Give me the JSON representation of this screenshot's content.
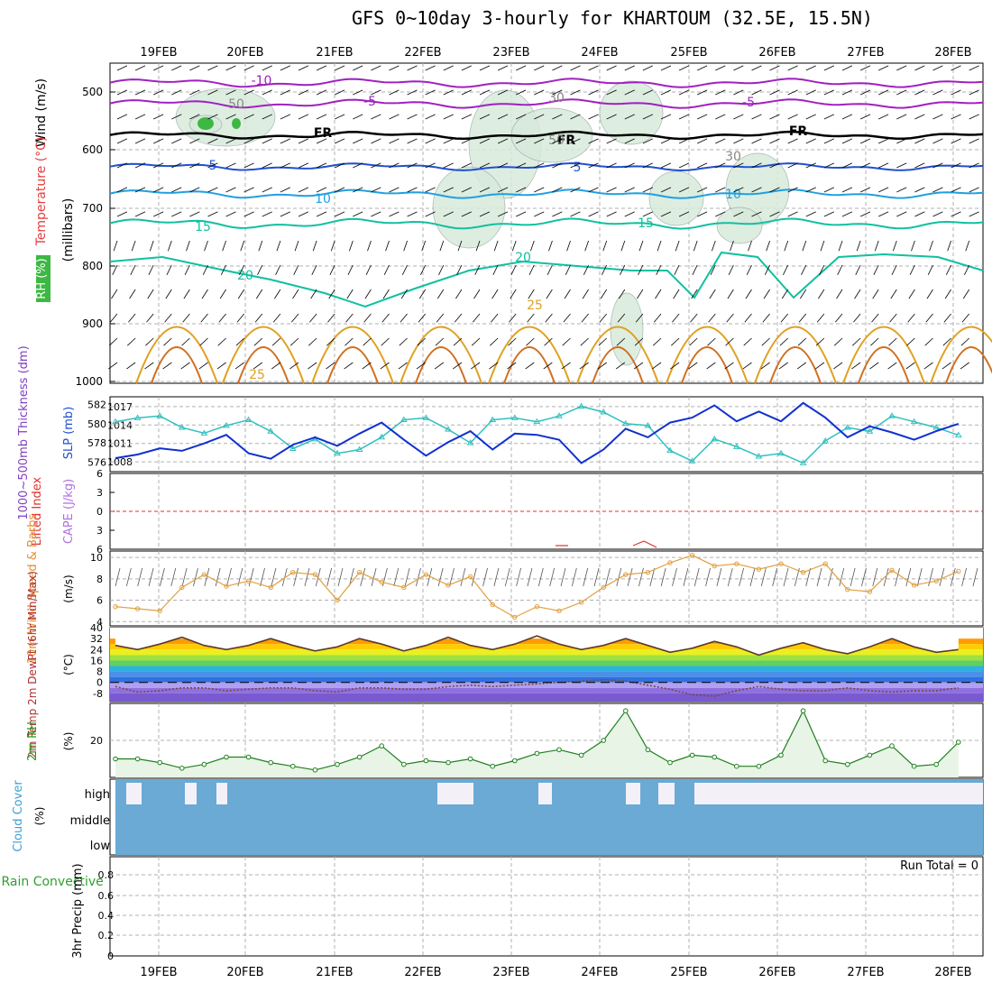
{
  "title": "GFS 0~10day 3-hourly for KHARTOUM (32.5E, 15.5N)",
  "dates": [
    "19FEB",
    "20FEB",
    "21FEB",
    "22FEB",
    "23FEB",
    "24FEB",
    "25FEB",
    "26FEB",
    "27FEB",
    "28FEB"
  ],
  "colors": {
    "grid": "#b0b0b0",
    "temp_purple": "#a020c0",
    "temp_blue": "#2050d0",
    "temp_cyan": "#20a0e0",
    "temp_teal": "#10c0a0",
    "temp_orange": "#e0a020",
    "slp": "#1030d0",
    "thickness": "#30c0c0",
    "wind10m": "#e0a040",
    "rh2m": "#208020",
    "cloud": "#6aaad4",
    "lifted": "#e03030",
    "cape": "#c080e0"
  },
  "panels": {
    "upper": {
      "ylabel_wind": "Wind (m/s)",
      "ylabel_temp": "Temperature (°C)",
      "ylabel_rh": "RH (%)",
      "ylabel_mb": "(millibars)",
      "levels": [
        "500",
        "600",
        "700",
        "800",
        "900",
        "1000"
      ],
      "contour_labels": [
        "-10",
        "-5",
        "-5",
        "FR",
        "FR",
        "FR",
        "5",
        "5",
        "10",
        "10",
        "15",
        "15",
        "20",
        "20",
        "25",
        "25",
        "50",
        "50",
        "30",
        "30"
      ]
    },
    "slp": {
      "ylabel_left": "1000~500mb Thickness (dm)",
      "ylabel_right": "SLP (mb)",
      "left_ticks": [
        "582",
        "580",
        "578",
        "576"
      ],
      "right_ticks": [
        "1017",
        "1014",
        "1011",
        "1008"
      ]
    },
    "li": {
      "ylabel_left": "Lifted Index",
      "ylabel_right": "CAPE (J/kg)",
      "ticks": [
        "6",
        "3",
        "0",
        "-3",
        "-6"
      ]
    },
    "wind": {
      "ylabel": "10m Wind Speed & Barbs",
      "unit": "(m/s)",
      "ticks": [
        "10",
        "8",
        "6",
        "4"
      ]
    },
    "temp": {
      "ylabel": "2m Temp 2m DewPt (6hr Min/Max)",
      "unit": "(°C)",
      "ticks": [
        "40",
        "32",
        "24",
        "16",
        "8",
        "0",
        "-8"
      ]
    },
    "rh": {
      "ylabel": "2m RH",
      "unit": "(%)",
      "ticks": [
        "20"
      ]
    },
    "cloud": {
      "ylabel": "Cloud Cover",
      "unit": "(%)",
      "ticks": [
        "high",
        "middle",
        "low"
      ]
    },
    "precip": {
      "ylabel_left": "Total / Rain Convective",
      "ylabel_right": "3hr Precip (mm)",
      "ticks": [
        "0.8",
        "0.6",
        "0.4",
        "0.2",
        "0"
      ],
      "run_total": "Run Total = 0"
    }
  },
  "chart_data": [
    {
      "type": "line",
      "title": "1000~500mb Thickness (dm) / SLP (mb)",
      "x": [
        "18FEB18",
        "19FEB00",
        "19FEB06",
        "19FEB12",
        "19FEB18",
        "20FEB00",
        "20FEB06",
        "20FEB12",
        "20FEB18",
        "21FEB00",
        "21FEB06",
        "21FEB12",
        "21FEB18",
        "22FEB00",
        "22FEB06",
        "22FEB12",
        "22FEB18",
        "23FEB00",
        "23FEB06",
        "23FEB12",
        "23FEB18",
        "24FEB00",
        "24FEB06",
        "24FEB12",
        "24FEB18",
        "25FEB00",
        "25FEB06",
        "25FEB12",
        "25FEB18",
        "26FEB00",
        "26FEB06",
        "26FEB12",
        "26FEB18",
        "27FEB00",
        "27FEB06",
        "27FEB12",
        "27FEB18",
        "28FEB00",
        "28FEB06"
      ],
      "series": [
        {
          "name": "SLP (mb)",
          "values": [
            1008.6,
            1009.2,
            1010.2,
            1009.8,
            1011.0,
            1012.4,
            1009.4,
            1008.5,
            1010.8,
            1012.0,
            1010.6,
            1012.6,
            1014.4,
            1011.6,
            1009.0,
            1011.2,
            1013.0,
            1010.0,
            1012.6,
            1012.4,
            1011.6,
            1007.8,
            1010.0,
            1013.4,
            1012.0,
            1014.4,
            1015.2,
            1017.2,
            1014.6,
            1016.2,
            1014.6,
            1017.6,
            1015.2,
            1012.0,
            1013.8,
            1012.8,
            1011.6,
            1013.0,
            1014.2
          ]
        },
        {
          "name": "1000~500mb Thickness (dm)",
          "values": [
            580.2,
            580.6,
            580.8,
            579.6,
            579.0,
            579.8,
            580.4,
            579.2,
            577.4,
            578.4,
            576.9,
            577.3,
            578.6,
            580.4,
            580.6,
            579.4,
            578.0,
            580.4,
            580.6,
            580.2,
            580.8,
            581.8,
            581.2,
            580.0,
            579.8,
            577.2,
            576.1,
            578.4,
            577.6,
            576.6,
            576.9,
            575.9,
            578.2,
            579.6,
            579.2,
            580.8,
            580.2,
            579.6,
            578.8
          ]
        }
      ],
      "ylim_left": [
        575,
        582.8
      ],
      "ylim_right": [
        1006.4,
        1018.6
      ]
    },
    {
      "type": "line",
      "title": "10m Wind Speed (m/s)",
      "x": [
        "18FEB18",
        "19FEB00",
        "19FEB06",
        "19FEB12",
        "19FEB18",
        "20FEB00",
        "20FEB06",
        "20FEB12",
        "20FEB18",
        "21FEB00",
        "21FEB06",
        "21FEB12",
        "21FEB18",
        "22FEB00",
        "22FEB06",
        "22FEB12",
        "22FEB18",
        "23FEB00",
        "23FEB06",
        "23FEB12",
        "23FEB18",
        "24FEB00",
        "24FEB06",
        "24FEB12",
        "24FEB18",
        "25FEB00",
        "25FEB06",
        "25FEB12",
        "25FEB18",
        "26FEB00",
        "26FEB06",
        "26FEB12",
        "26FEB18",
        "27FEB00",
        "27FEB06",
        "27FEB12",
        "27FEB18",
        "28FEB00",
        "28FEB06"
      ],
      "series": [
        {
          "name": "10m Wind Speed",
          "values": [
            5.4,
            5.2,
            5.0,
            7.2,
            8.4,
            7.3,
            7.8,
            7.2,
            8.6,
            8.4,
            6.0,
            8.6,
            7.7,
            7.2,
            8.4,
            7.4,
            8.2,
            5.6,
            4.4,
            5.4,
            5.0,
            5.8,
            7.2,
            8.4,
            8.6,
            9.5,
            10.2,
            9.2,
            9.4,
            8.9,
            9.4,
            8.6,
            9.4,
            7.0,
            6.8,
            8.8,
            7.4,
            7.8,
            8.7
          ]
        }
      ],
      "ylim": [
        3.6,
        10.6
      ]
    },
    {
      "type": "area",
      "title": "2m Temp / 2m DewPt (°C)",
      "x": [
        "18FEB18",
        "19FEB00",
        "19FEB06",
        "19FEB12",
        "19FEB18",
        "20FEB00",
        "20FEB06",
        "20FEB12",
        "20FEB18",
        "21FEB00",
        "21FEB06",
        "21FEB12",
        "21FEB18",
        "22FEB00",
        "22FEB06",
        "22FEB12",
        "22FEB18",
        "23FEB00",
        "23FEB06",
        "23FEB12",
        "23FEB18",
        "24FEB00",
        "24FEB06",
        "24FEB12",
        "24FEB18",
        "25FEB00",
        "25FEB06",
        "25FEB12",
        "25FEB18",
        "26FEB00",
        "26FEB06",
        "26FEB12",
        "26FEB18",
        "27FEB00",
        "27FEB06",
        "27FEB12",
        "27FEB18",
        "28FEB00",
        "28FEB06"
      ],
      "series": [
        {
          "name": "2m Temp",
          "values": [
            27,
            24,
            28,
            33,
            27,
            24,
            27,
            32,
            27,
            23,
            26,
            32,
            28,
            23,
            27,
            33,
            27,
            24,
            28,
            34,
            28,
            24,
            27,
            32,
            27,
            22,
            25,
            30,
            26,
            20,
            25,
            29,
            24,
            21,
            26,
            32,
            26,
            22,
            24
          ]
        },
        {
          "name": "2m DewPt",
          "values": [
            -3,
            -7,
            -6,
            -4,
            -4,
            -6,
            -5,
            -4,
            -4,
            -6,
            -7,
            -4,
            -4,
            -5,
            -5,
            -3,
            -2,
            -3,
            -2,
            -1,
            0,
            1,
            2,
            1,
            -2,
            -5,
            -9,
            -10,
            -6,
            -3,
            -5,
            -6,
            -6,
            -4,
            -6,
            -7,
            -6,
            -6,
            -4
          ]
        }
      ],
      "ylim": [
        -14,
        40
      ]
    },
    {
      "type": "area",
      "title": "2m RH (%)",
      "x": [
        "18FEB18",
        "19FEB00",
        "19FEB06",
        "19FEB12",
        "19FEB18",
        "20FEB00",
        "20FEB06",
        "20FEB12",
        "20FEB18",
        "21FEB00",
        "21FEB06",
        "21FEB12",
        "21FEB18",
        "22FEB00",
        "22FEB06",
        "22FEB12",
        "22FEB18",
        "23FEB00",
        "23FEB06",
        "23FEB12",
        "23FEB18",
        "24FEB00",
        "24FEB06",
        "24FEB12",
        "24FEB18",
        "25FEB00",
        "25FEB06",
        "25FEB12",
        "25FEB18",
        "26FEB00",
        "26FEB06",
        "26FEB12",
        "26FEB18",
        "27FEB00",
        "27FEB06",
        "27FEB12",
        "27FEB18",
        "28FEB00",
        "28FEB06"
      ],
      "series": [
        {
          "name": "2m RH",
          "values": [
            10,
            10,
            8,
            5,
            7,
            11,
            11,
            8,
            6,
            4,
            7,
            11,
            17,
            7,
            9,
            8,
            10,
            6,
            9,
            13,
            15,
            12,
            20,
            36,
            15,
            8,
            12,
            11,
            6,
            6,
            12,
            36,
            9,
            7,
            12,
            17,
            6,
            7,
            19
          ]
        }
      ],
      "ylim": [
        0,
        40
      ]
    },
    {
      "type": "line",
      "title": "Lifted Index / CAPE (J/kg)",
      "x": [
        "23FEB12",
        "23FEB15",
        "24FEB09",
        "24FEB12",
        "24FEB15"
      ],
      "series": [
        {
          "name": "Lifted Index",
          "values": [
            -5.4,
            -5.4,
            -5.2,
            -4.6,
            -5.4
          ]
        }
      ],
      "ylim": [
        -6,
        6
      ]
    }
  ]
}
